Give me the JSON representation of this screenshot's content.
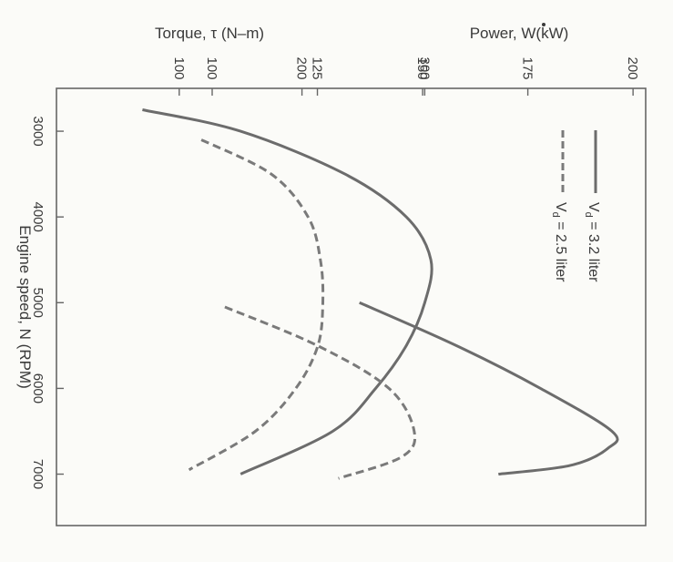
{
  "chart_data": {
    "type": "line",
    "orientation": "rotated-90-clockwise",
    "x_axis": {
      "label": "Engine speed, N (RPM)",
      "ticks": [
        "3000",
        "4000",
        "5000",
        "6000",
        "7000"
      ],
      "range": [
        2500,
        7600
      ]
    },
    "torque_axis": {
      "label": "Torque, τ (N–m)",
      "ticks": [
        "100",
        "200",
        "300"
      ],
      "range": [
        0,
        480
      ]
    },
    "power_axis": {
      "label": "Power, W(kW)",
      "ticks": [
        "100",
        "125",
        "150",
        "175",
        "200"
      ],
      "range": [
        63,
        203
      ]
    },
    "legend": {
      "position": "top-right",
      "entries": [
        {
          "label": "Vd = 3.2 liter",
          "label_main": "V",
          "label_sub": "d",
          "label_rest": " = 3.2 liter",
          "style": "solid"
        },
        {
          "label": "Vd = 2.5 liter",
          "label_main": "V",
          "label_sub": "d",
          "label_rest": " = 2.5 liter",
          "style": "dashed"
        }
      ]
    },
    "series": [
      {
        "name": "Vd = 3.2 liter",
        "quantity": "torque",
        "style": "solid",
        "x": [
          2750,
          3000,
          3500,
          4000,
          4500,
          5000,
          5500,
          6000,
          6500,
          7000
        ],
        "y": [
          70,
          150,
          235,
          285,
          305,
          300,
          285,
          260,
          225,
          150
        ]
      },
      {
        "name": "Vd = 2.5 liter",
        "quantity": "torque",
        "style": "dashed",
        "x": [
          3100,
          3500,
          4000,
          4500,
          5000,
          5500,
          6000,
          6500,
          6950
        ],
        "y": [
          118,
          175,
          205,
          215,
          217,
          213,
          195,
          162,
          108
        ]
      },
      {
        "name": "Vd = 3.2 liter",
        "quantity": "power",
        "style": "solid",
        "x": [
          5000,
          5500,
          6000,
          6500,
          6700,
          6900,
          7000
        ],
        "y": [
          135,
          158,
          178,
          195,
          194,
          185,
          168
        ]
      },
      {
        "name": "Vd = 2.5 liter",
        "quantity": "power",
        "style": "dashed",
        "x": [
          5050,
          5500,
          6000,
          6500,
          6800,
          7050
        ],
        "y": [
          103,
          125,
          142,
          148,
          145,
          130
        ]
      }
    ]
  }
}
